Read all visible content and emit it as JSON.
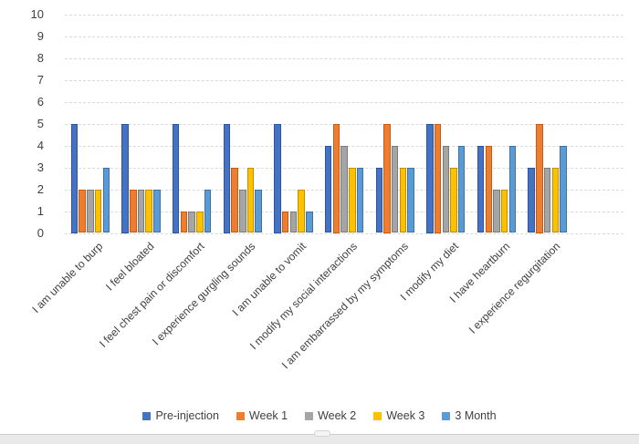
{
  "chart_data": {
    "type": "bar",
    "title": "",
    "xlabel": "",
    "ylabel": "",
    "ylim": [
      0,
      10
    ],
    "yticks": [
      "0",
      "1",
      "2",
      "3",
      "4",
      "5",
      "6",
      "7",
      "8",
      "9",
      "10"
    ],
    "grid": true,
    "legend_position": "bottom",
    "categories": [
      "I am unable to burp",
      "I feel bloated",
      "I feel chest pain or discomfort",
      "I experience gurgling sounds",
      "I am unable to vomit",
      "I modify my social interactions",
      "I am embarrassed by my symptoms",
      "I modify my diet",
      "I have heartburn",
      "I experience regurgitation"
    ],
    "series": [
      {
        "name": "Pre-injection",
        "color": "#4472C4",
        "border_color": "#2F5597",
        "values": [
          5,
          5,
          5,
          5,
          5,
          4,
          3,
          5,
          4,
          3
        ]
      },
      {
        "name": "Week 1",
        "color": "#ED7D31",
        "border_color": "#C55A11",
        "values": [
          2,
          2,
          1,
          3,
          1,
          5,
          5,
          5,
          4,
          5
        ]
      },
      {
        "name": "Week 2",
        "color": "#A5A5A5",
        "border_color": "#7B7B7B",
        "values": [
          2,
          2,
          1,
          2,
          1,
          4,
          4,
          4,
          2,
          3
        ]
      },
      {
        "name": "Week 3",
        "color": "#FFC000",
        "border_color": "#BF9000",
        "values": [
          2,
          2,
          1,
          3,
          2,
          3,
          3,
          3,
          2,
          3
        ]
      },
      {
        "name": "3 Month",
        "color": "#5B9BD5",
        "border_color": "#41719C",
        "values": [
          3,
          2,
          2,
          2,
          1,
          3,
          3,
          4,
          4,
          4
        ]
      }
    ]
  },
  "page": {
    "background": "#ffffff",
    "gridline_color": "#d9d9d9",
    "text_color": "#3f3f3f"
  }
}
